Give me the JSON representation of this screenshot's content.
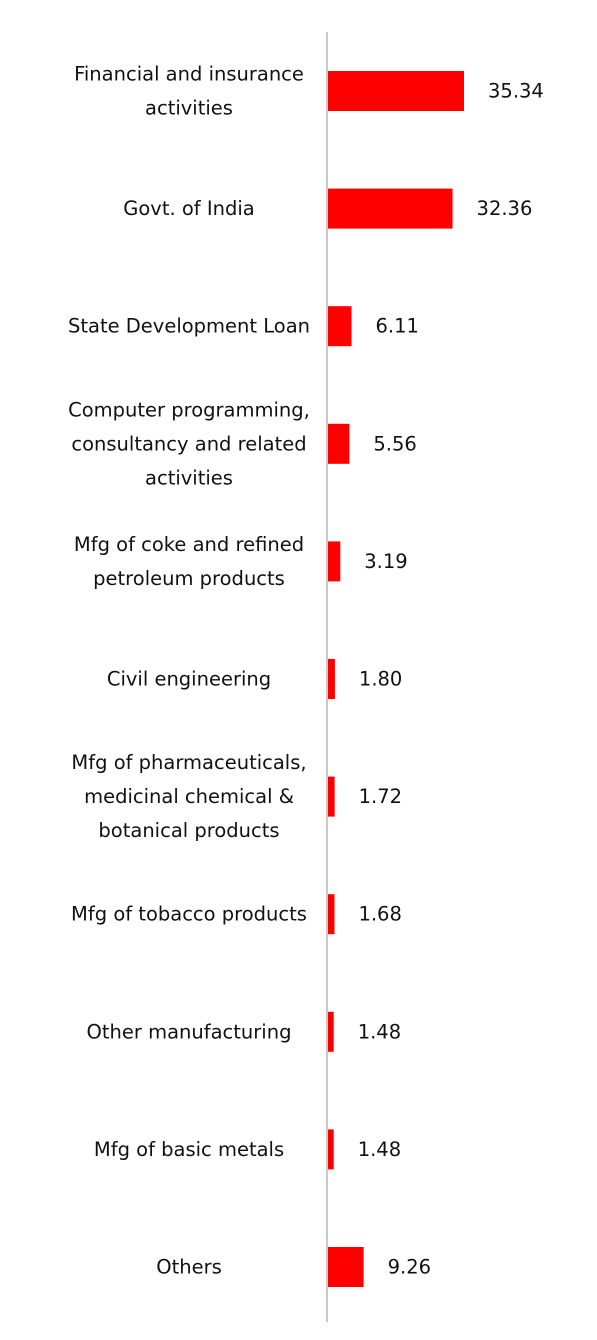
{
  "chart_data": {
    "type": "bar",
    "orientation": "horizontal",
    "categories": [
      [
        "Financial and insurance",
        "activities"
      ],
      [
        "Govt. of India"
      ],
      [
        "State Development Loan"
      ],
      [
        "Computer programming,",
        "consultancy and related",
        "activities"
      ],
      [
        "Mfg of coke and refined",
        "petroleum products"
      ],
      [
        "Civil engineering"
      ],
      [
        "Mfg of pharmaceuticals,",
        "medicinal chemical &",
        "botanical products"
      ],
      [
        "Mfg of tobacco products"
      ],
      [
        "Other manufacturing"
      ],
      [
        "Mfg of basic metals"
      ],
      [
        "Others"
      ]
    ],
    "values": [
      35.34,
      32.36,
      6.11,
      5.56,
      3.19,
      1.8,
      1.72,
      1.68,
      1.48,
      1.48,
      9.26
    ],
    "value_labels": [
      "35.34",
      "32.36",
      "6.11",
      "5.56",
      "3.19",
      "1.80",
      "1.72",
      "1.68",
      "1.48",
      "1.48",
      "9.26"
    ],
    "bar_color": "#ff0000",
    "axis_color": "#c8c8c8",
    "xlim": [
      0,
      35.34
    ],
    "grid": false,
    "legend": "none"
  }
}
